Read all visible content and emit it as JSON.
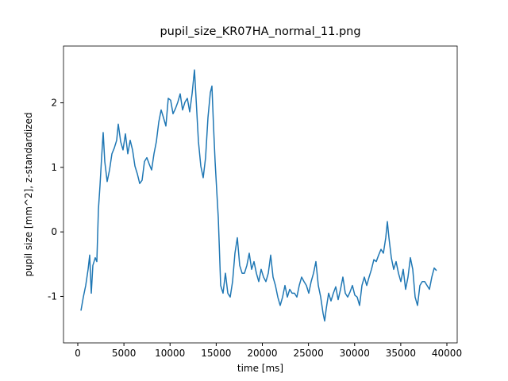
{
  "chart_data": {
    "type": "line",
    "title": "pupil_size_KR07HA_normal_11.png",
    "xlabel": "time [ms]",
    "ylabel": "pupil size [mm^2], z-standardized",
    "xlim": [
      -1548,
      41118
    ],
    "ylim": [
      -1.72,
      2.88
    ],
    "xticks": [
      0,
      5000,
      10000,
      15000,
      20000,
      25000,
      30000,
      35000,
      40000
    ],
    "yticks": [
      -1,
      0,
      1,
      2
    ],
    "series": [
      {
        "name": "pupil size",
        "color": "#1f77b4",
        "x": [
          344,
          602,
          860,
          1118,
          1290,
          1462,
          1634,
          1892,
          2065,
          2237,
          2409,
          2581,
          2753,
          2925,
          3183,
          3441,
          3699,
          3957,
          4215,
          4387,
          4645,
          4903,
          5161,
          5419,
          5677,
          5935,
          6194,
          6452,
          6710,
          6968,
          7226,
          7484,
          7742,
          8000,
          8258,
          8516,
          8774,
          9032,
          9290,
          9548,
          9806,
          10064,
          10323,
          10581,
          10839,
          11097,
          11355,
          11613,
          11871,
          12129,
          12387,
          12645,
          12817,
          13075,
          13333,
          13591,
          13849,
          14108,
          14366,
          14538,
          14710,
          14882,
          15054,
          15226,
          15484,
          15742,
          16000,
          16258,
          16516,
          16774,
          17032,
          17290,
          17548,
          17806,
          18064,
          18323,
          18581,
          18839,
          19097,
          19355,
          19613,
          19871,
          20129,
          20387,
          20645,
          20903,
          21161,
          21419,
          21677,
          21935,
          22194,
          22452,
          22710,
          22968,
          23226,
          23484,
          23742,
          24000,
          24258,
          24516,
          24774,
          25032,
          25290,
          25548,
          25806,
          26065,
          26323,
          26581,
          26753,
          26925,
          27183,
          27441,
          27699,
          27957,
          28215,
          28473,
          28731,
          28989,
          29247,
          29505,
          29763,
          30022,
          30280,
          30538,
          30796,
          31054,
          31312,
          31570,
          31828,
          32086,
          32344,
          32602,
          32860,
          33118,
          33376,
          33548,
          33720,
          33978,
          34236,
          34495,
          34753,
          35011,
          35269,
          35527,
          35785,
          36043,
          36301,
          36559,
          36817,
          37075,
          37333,
          37591,
          37849,
          38108,
          38366,
          38624,
          38882
        ],
        "values": [
          -1.22,
          -1.01,
          -0.83,
          -0.58,
          -0.36,
          -0.95,
          -0.52,
          -0.4,
          -0.46,
          0.35,
          0.72,
          1.15,
          1.54,
          1.09,
          0.78,
          0.96,
          1.21,
          1.3,
          1.42,
          1.67,
          1.4,
          1.27,
          1.52,
          1.21,
          1.42,
          1.27,
          1.02,
          0.9,
          0.75,
          0.8,
          1.09,
          1.15,
          1.05,
          0.96,
          1.21,
          1.4,
          1.7,
          1.89,
          1.77,
          1.64,
          2.07,
          2.04,
          1.83,
          1.91,
          2.01,
          2.14,
          1.89,
          2.01,
          2.07,
          1.86,
          2.14,
          2.51,
          2.07,
          1.4,
          1.02,
          0.84,
          1.15,
          1.77,
          2.16,
          2.26,
          1.64,
          1.09,
          0.65,
          0.22,
          -0.83,
          -0.95,
          -0.64,
          -0.95,
          -1.01,
          -0.77,
          -0.33,
          -0.09,
          -0.52,
          -0.64,
          -0.64,
          -0.52,
          -0.33,
          -0.58,
          -0.46,
          -0.64,
          -0.77,
          -0.58,
          -0.7,
          -0.77,
          -0.64,
          -0.36,
          -0.7,
          -0.83,
          -1.01,
          -1.14,
          -1.01,
          -0.83,
          -1.01,
          -0.89,
          -0.95,
          -0.95,
          -1.01,
          -0.83,
          -0.7,
          -0.77,
          -0.83,
          -0.95,
          -0.77,
          -0.64,
          -0.46,
          -0.83,
          -1.01,
          -1.26,
          -1.38,
          -1.19,
          -0.95,
          -1.07,
          -0.95,
          -0.85,
          -1.05,
          -0.89,
          -0.7,
          -0.95,
          -1.01,
          -0.93,
          -0.83,
          -0.98,
          -1.01,
          -1.14,
          -0.83,
          -0.7,
          -0.83,
          -0.7,
          -0.58,
          -0.43,
          -0.46,
          -0.36,
          -0.27,
          -0.33,
          -0.09,
          0.16,
          -0.09,
          -0.4,
          -0.58,
          -0.46,
          -0.64,
          -0.77,
          -0.58,
          -0.89,
          -0.7,
          -0.4,
          -0.58,
          -1.01,
          -1.14,
          -0.83,
          -0.77,
          -0.77,
          -0.83,
          -0.89,
          -0.7,
          -0.56,
          -0.6
        ]
      }
    ]
  }
}
